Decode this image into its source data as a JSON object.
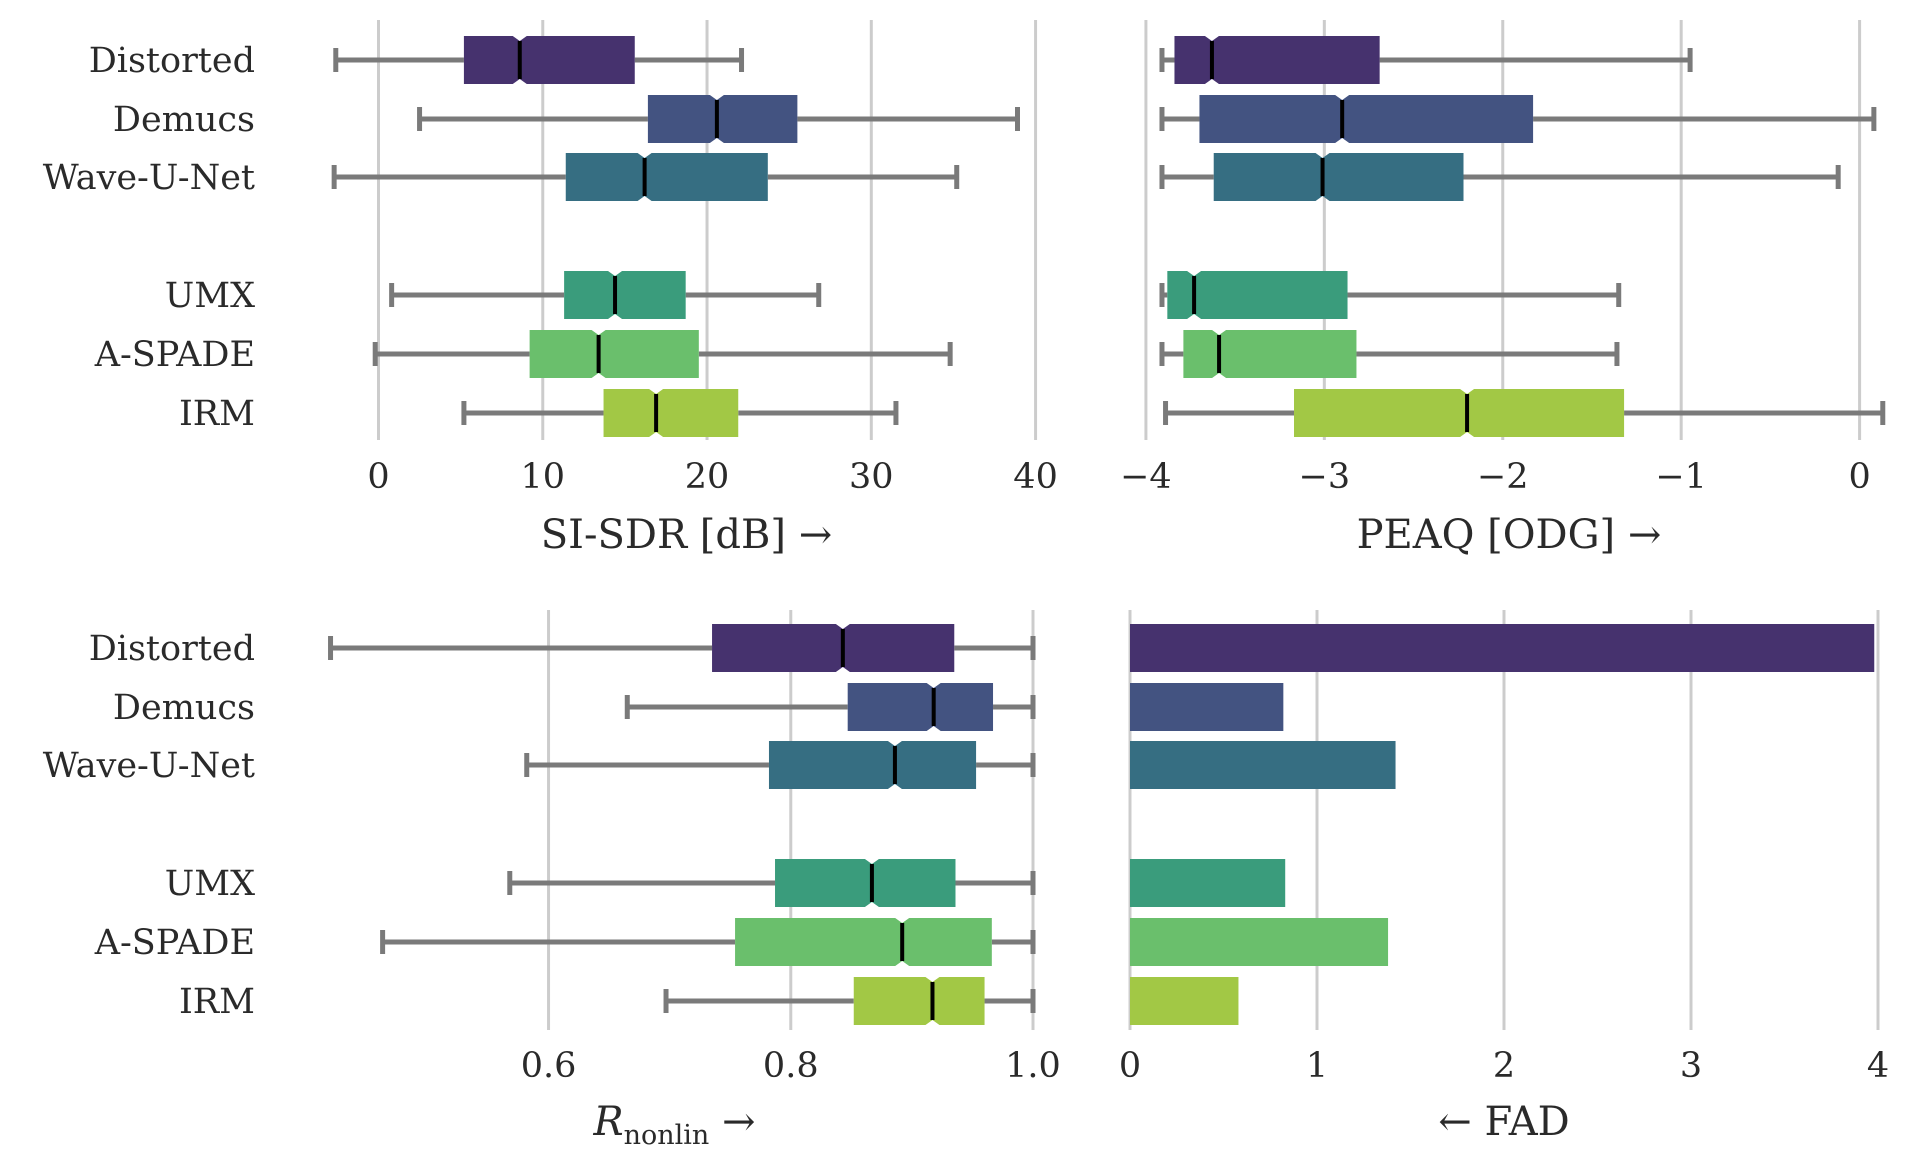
{
  "colors": {
    "Distorted": "#46326e",
    "Demucs": "#435381",
    "Wave-U-Net": "#366e82",
    "UMX": "#3a9c7c",
    "A-SPADE": "#6abf6c",
    "IRM": "#a2c845",
    "whisker": "#7a7a7a",
    "grid": "#cccccc"
  },
  "chart_data": [
    {
      "type": "box",
      "xlabel": "SI-SDR [dB] →",
      "xlim": [
        -3.5,
        41
      ],
      "xticks": [
        0,
        10,
        20,
        30,
        40
      ],
      "tick_labels": [
        "0",
        "10",
        "20",
        "30",
        "40"
      ],
      "categories": [
        "Distorted",
        "Demucs",
        "Wave-U-Net",
        "UMX",
        "A-SPADE",
        "IRM"
      ],
      "boxes": [
        {
          "min": -2.6,
          "q1": 5.2,
          "median": 8.6,
          "q3": 15.6,
          "max": 22.1
        },
        {
          "min": 2.5,
          "q1": 16.4,
          "median": 20.6,
          "q3": 25.5,
          "max": 38.9
        },
        {
          "min": -2.7,
          "q1": 11.4,
          "median": 16.2,
          "q3": 23.7,
          "max": 35.2
        },
        {
          "min": 0.8,
          "q1": 11.3,
          "median": 14.4,
          "q3": 18.7,
          "max": 26.8
        },
        {
          "min": -0.2,
          "q1": 9.2,
          "median": 13.4,
          "q3": 19.5,
          "max": 34.8
        },
        {
          "min": 5.2,
          "q1": 13.7,
          "median": 16.9,
          "q3": 21.9,
          "max": 31.5
        }
      ]
    },
    {
      "type": "box",
      "xlabel": "PEAQ [ODG] →",
      "xlim": [
        -4.05,
        0.12
      ],
      "xticks": [
        -4,
        -3,
        -2,
        -1,
        0
      ],
      "tick_labels": [
        "−4",
        "−3",
        "−2",
        "−1",
        "0"
      ],
      "categories": [
        "Distorted",
        "Demucs",
        "Wave-U-Net",
        "UMX",
        "A-SPADE",
        "IRM"
      ],
      "boxes": [
        {
          "min": -3.91,
          "q1": -3.84,
          "median": -3.63,
          "q3": -2.69,
          "max": -0.95
        },
        {
          "min": -3.91,
          "q1": -3.7,
          "median": -2.9,
          "q3": -1.83,
          "max": 0.08
        },
        {
          "min": -3.91,
          "q1": -3.62,
          "median": -3.01,
          "q3": -2.22,
          "max": -0.12
        },
        {
          "min": -3.91,
          "q1": -3.88,
          "median": -3.73,
          "q3": -2.87,
          "max": -1.35
        },
        {
          "min": -3.91,
          "q1": -3.79,
          "median": -3.59,
          "q3": -2.82,
          "max": -1.36
        },
        {
          "min": -3.89,
          "q1": -3.17,
          "median": -2.2,
          "q3": -1.32,
          "max": 0.13
        }
      ]
    },
    {
      "type": "box",
      "xlabel": "R",
      "xlabel_sub": "nonlin",
      "xlabel_suffix": " →",
      "xlim": [
        0.408,
        1.0
      ],
      "xticks": [
        0.6,
        0.8,
        1.0
      ],
      "tick_labels": [
        "0.6",
        "0.8",
        "1.0"
      ],
      "categories": [
        "Distorted",
        "Demucs",
        "Wave-U-Net",
        "UMX",
        "A-SPADE",
        "IRM"
      ],
      "boxes": [
        {
          "min": 0.42,
          "q1": 0.735,
          "median": 0.843,
          "q3": 0.935,
          "max": 1.0
        },
        {
          "min": 0.665,
          "q1": 0.847,
          "median": 0.918,
          "q3": 0.967,
          "max": 1.0
        },
        {
          "min": 0.582,
          "q1": 0.782,
          "median": 0.886,
          "q3": 0.953,
          "max": 1.0
        },
        {
          "min": 0.568,
          "q1": 0.787,
          "median": 0.867,
          "q3": 0.936,
          "max": 1.0
        },
        {
          "min": 0.463,
          "q1": 0.754,
          "median": 0.892,
          "q3": 0.966,
          "max": 1.0
        },
        {
          "min": 0.697,
          "q1": 0.852,
          "median": 0.917,
          "q3": 0.96,
          "max": 1.0
        }
      ]
    },
    {
      "type": "bar",
      "orientation": "horizontal",
      "xlabel": "← FAD",
      "xlim": [
        0,
        4.0
      ],
      "xticks": [
        0,
        1,
        2,
        3,
        4
      ],
      "tick_labels": [
        "0",
        "1",
        "2",
        "3",
        "4"
      ],
      "categories": [
        "Distorted",
        "Demucs",
        "Wave-U-Net",
        "UMX",
        "A-SPADE",
        "IRM"
      ],
      "values": [
        3.98,
        0.82,
        1.42,
        0.83,
        1.38,
        0.58
      ]
    }
  ]
}
